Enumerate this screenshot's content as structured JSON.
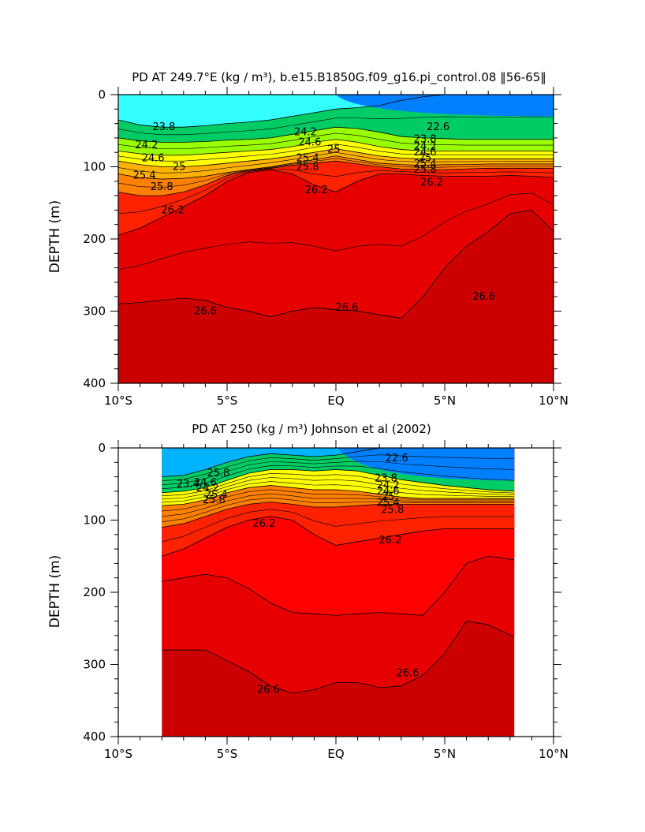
{
  "chart_data": [
    {
      "type": "heatmap",
      "title": "PD AT 249.7°E (kg / m³), b.e15.B1850G.f09_g16.pi_control.08 ‖56-65‖",
      "ylabel": "DEPTH (m)",
      "xlabel": "",
      "xlim": [
        -10,
        10
      ],
      "ylim": [
        400,
        0
      ],
      "x_ticks": [
        -10,
        -5,
        0,
        5,
        10
      ],
      "x_tick_labels": [
        "10°S",
        "5°S",
        "EQ",
        "5°N",
        "10°N"
      ],
      "y_ticks": [
        0,
        100,
        200,
        300,
        400
      ],
      "y_tick_labels": [
        "0",
        "100",
        "200",
        "300",
        "400"
      ],
      "data_extent": [
        -10,
        10
      ],
      "contour_interval": 0.2,
      "contour_levels": [
        22.0,
        22.2,
        22.4,
        22.6,
        22.8,
        23.0,
        23.2,
        23.4,
        23.6,
        23.8,
        24.0,
        24.2,
        24.4,
        24.6,
        24.8,
        25.0,
        25.2,
        25.4,
        25.6,
        25.8,
        26.0,
        26.2,
        26.4,
        26.6,
        26.8
      ],
      "x": [
        -10,
        -9,
        -8,
        -7,
        -6,
        -5,
        -4,
        -3,
        -2,
        -1,
        0,
        1,
        2,
        3,
        4,
        5,
        6,
        7,
        8,
        9,
        10
      ],
      "isopycnal_depths": {
        "23.8": [
          35,
          42,
          45,
          45,
          43,
          40,
          38,
          35,
          30,
          25,
          20,
          18,
          15,
          8,
          3,
          0,
          0,
          0,
          0,
          0,
          0
        ],
        "24.2": [
          60,
          64,
          66,
          66,
          65,
          63,
          62,
          60,
          55,
          50,
          45,
          47,
          52,
          58,
          60,
          61,
          62,
          62,
          62,
          62,
          62
        ],
        "24.6": [
          78,
          82,
          84,
          84,
          82,
          80,
          78,
          76,
          72,
          66,
          62,
          66,
          72,
          76,
          78,
          78,
          78,
          78,
          78,
          78,
          78
        ],
        "25.0": [
          92,
          97,
          100,
          100,
          98,
          95,
          92,
          89,
          85,
          80,
          75,
          80,
          85,
          88,
          89,
          89,
          89,
          89,
          89,
          89,
          89
        ],
        "25.4": [
          110,
          115,
          117,
          116,
          113,
          108,
          104,
          100,
          95,
          90,
          85,
          90,
          95,
          97,
          98,
          97,
          97,
          96,
          96,
          96,
          96
        ],
        "25.8": [
          135,
          140,
          140,
          135,
          125,
          112,
          105,
          102,
          98,
          95,
          92,
          96,
          100,
          103,
          104,
          104,
          103,
          102,
          102,
          102,
          102
        ],
        "26.2": [
          195,
          185,
          170,
          155,
          140,
          120,
          108,
          104,
          110,
          125,
          135,
          120,
          110,
          110,
          112,
          113,
          113,
          113,
          112,
          113,
          115
        ],
        "26.6": [
          290,
          288,
          285,
          282,
          285,
          295,
          300,
          308,
          300,
          295,
          298,
          300,
          305,
          310,
          280,
          240,
          210,
          190,
          165,
          160,
          190
        ]
      },
      "contour_labels": [
        "23.8",
        "24.2",
        "24.6",
        "25",
        "25.4",
        "25.8",
        "26.2",
        "24.2",
        "24.6",
        "25",
        "25.4",
        "25.8",
        "26.2",
        "22.6",
        "23.8",
        "24.2",
        "24.6",
        "25",
        "25.4",
        "25.8",
        "26.2",
        "26.6",
        "26.6",
        "26.6"
      ],
      "colors": {
        "22.0": "#ff00ff",
        "22.2": "#cc00e6",
        "22.4": "#9900cc",
        "22.6": "#3300cc",
        "22.8": "#0000e6",
        "23.0": "#0033ff",
        "23.2": "#0080ff",
        "23.4": "#00b3ff",
        "23.6": "#00ddff",
        "23.8": "#33ffff",
        "24.0": "#00e6b3",
        "24.2": "#00cc66",
        "24.4": "#33e633",
        "24.6": "#99ff00",
        "24.8": "#e6ff00",
        "25.0": "#ffff00",
        "25.2": "#ffd700",
        "25.4": "#ffb300",
        "25.6": "#ff9900",
        "25.8": "#ff8000",
        "26.0": "#ff4d00",
        "26.2": "#ff2200",
        "26.4": "#ff0000",
        "26.6": "#e60000",
        "26.8": "#cc0000"
      }
    },
    {
      "type": "heatmap",
      "title": "PD AT 250 (kg / m³) Johnson et al (2002)",
      "ylabel": "DEPTH (m)",
      "xlabel": "",
      "xlim": [
        -10,
        10
      ],
      "ylim": [
        400,
        0
      ],
      "x_ticks": [
        -10,
        -5,
        0,
        5,
        10
      ],
      "x_tick_labels": [
        "10°S",
        "5°S",
        "EQ",
        "5°N",
        "10°N"
      ],
      "y_ticks": [
        0,
        100,
        200,
        300,
        400
      ],
      "y_tick_labels": [
        "0",
        "100",
        "200",
        "300",
        "400"
      ],
      "data_extent": [
        -8,
        8.2
      ],
      "contour_interval": 0.2,
      "contour_levels": [
        22.0,
        22.2,
        22.4,
        22.6,
        22.8,
        23.0,
        23.2,
        23.4,
        23.6,
        23.8,
        24.0,
        24.2,
        24.4,
        24.6,
        24.8,
        25.0,
        25.2,
        25.4,
        25.6,
        25.8,
        26.0,
        26.2,
        26.4,
        26.6,
        26.8
      ],
      "x": [
        -8,
        -7,
        -6,
        -5,
        -4,
        -3,
        -2,
        -1,
        0,
        1,
        2,
        3,
        4,
        5,
        6,
        7,
        8.2
      ],
      "isopycnal_depths": {
        "23.4": [
          40,
          38,
          30,
          20,
          12,
          8,
          10,
          12,
          10,
          5,
          0,
          0,
          0,
          0,
          0,
          0,
          0
        ],
        "24.2": [
          62,
          60,
          55,
          45,
          35,
          30,
          30,
          32,
          30,
          32,
          38,
          44,
          48,
          52,
          55,
          58,
          60
        ],
        "25.0": [
          80,
          78,
          72,
          62,
          55,
          52,
          55,
          58,
          58,
          60,
          64,
          68,
          70,
          70,
          70,
          70,
          70
        ],
        "25.8": [
          110,
          105,
          95,
          85,
          78,
          75,
          78,
          82,
          82,
          80,
          78,
          78,
          78,
          78,
          78,
          78,
          78
        ],
        "26.2": [
          150,
          140,
          125,
          110,
          100,
          95,
          100,
          120,
          135,
          130,
          125,
          120,
          115,
          112,
          112,
          112,
          112
        ],
        "26.4": [
          185,
          180,
          175,
          180,
          195,
          215,
          228,
          230,
          232,
          230,
          228,
          230,
          232,
          200,
          160,
          150,
          155
        ],
        "26.6": [
          280,
          280,
          280,
          295,
          310,
          330,
          340,
          335,
          325,
          325,
          332,
          330,
          315,
          285,
          240,
          245,
          262
        ]
      },
      "contour_labels": [
        "23.4",
        "25.8",
        "24.6",
        "24.2",
        "25.4",
        "25.8",
        "26.2",
        "22.6",
        "23.8",
        "24.2",
        "24.6",
        "25",
        "25.4",
        "25.8",
        "26.2",
        "26.6",
        "26.6"
      ],
      "colors": {
        "22.0": "#ff00ff",
        "22.2": "#cc00e6",
        "22.4": "#9900cc",
        "22.6": "#3300cc",
        "22.8": "#0000e6",
        "23.0": "#0033ff",
        "23.2": "#0080ff",
        "23.4": "#00b3ff",
        "23.6": "#00ddff",
        "23.8": "#33ffff",
        "24.0": "#00e6b3",
        "24.2": "#00cc66",
        "24.4": "#33e633",
        "24.6": "#99ff00",
        "24.8": "#e6ff00",
        "25.0": "#ffff00",
        "25.2": "#ffd700",
        "25.4": "#ffb300",
        "25.6": "#ff9900",
        "25.8": "#ff8000",
        "26.0": "#ff4d00",
        "26.2": "#ff2200",
        "26.4": "#ff0000",
        "26.6": "#e60000",
        "26.8": "#cc0000"
      }
    }
  ]
}
